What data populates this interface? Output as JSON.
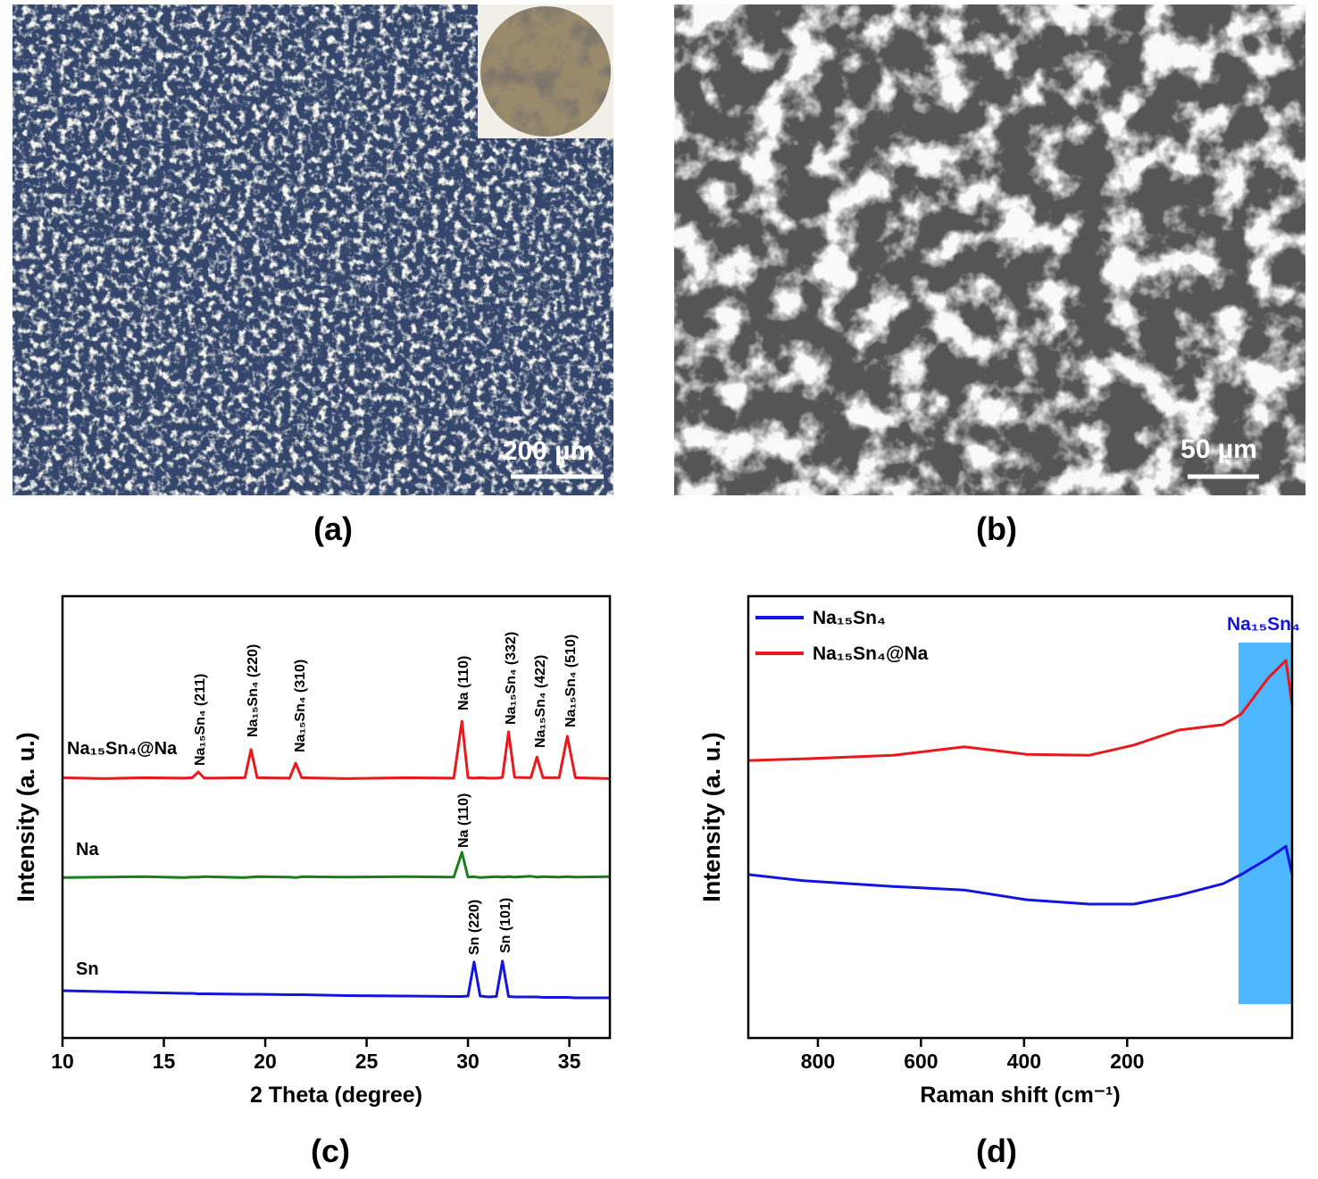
{
  "figure": {
    "panels": [
      {
        "label": "(a)",
        "scale_bar": "200 µm"
      },
      {
        "label": "(b)",
        "scale_bar": "50 µm"
      },
      {
        "label": "(c)"
      },
      {
        "label": "(d)"
      }
    ]
  },
  "chart_data": [
    {
      "type": "line",
      "x_label": "2 Theta (degree)",
      "y_label": "Intensity (a. u.)",
      "xlim": [
        10,
        37
      ],
      "xticks": [
        10,
        15,
        20,
        25,
        30,
        35
      ],
      "ylim": [
        0,
        100
      ],
      "legend": "inline",
      "x": [
        10,
        12,
        14,
        16,
        16.4,
        16.7,
        17,
        19,
        19.3,
        19.6,
        21.2,
        21.5,
        21.8,
        24,
        27,
        29.3,
        29.7,
        30.0,
        30.3,
        30.6,
        31,
        31.4,
        31.7,
        32.0,
        32.3,
        33.1,
        33.4,
        33.7,
        34.5,
        34.9,
        35.3,
        37
      ],
      "series": [
        {
          "name": "Na₁₅Sn₄@Na",
          "color": "#e8191c",
          "values": [
            58.9,
            58.7,
            58.9,
            58.8,
            58.9,
            60.2,
            58.8,
            58.9,
            65.3,
            58.9,
            58.8,
            62.2,
            58.9,
            58.7,
            58.9,
            58.8,
            71.7,
            58.9,
            58.8,
            58.9,
            58.8,
            58.8,
            59.0,
            69.3,
            59.0,
            58.9,
            63.6,
            58.9,
            58.9,
            68.3,
            58.9,
            58.7
          ]
        },
        {
          "name": "Na",
          "color": "#1a7f1a",
          "values": [
            36.3,
            36.4,
            36.5,
            36.3,
            36.4,
            36.4,
            36.5,
            36.3,
            36.4,
            36.5,
            36.4,
            36.3,
            36.5,
            36.4,
            36.5,
            36.4,
            42.0,
            36.4,
            36.5,
            36.3,
            36.4,
            36.5,
            36.4,
            36.5,
            36.4,
            36.6,
            36.4,
            36.5,
            36.4,
            36.5,
            36.4,
            36.5
          ]
        },
        {
          "name": "Sn",
          "color": "#1414e0",
          "values": [
            10.7,
            10.5,
            10.3,
            10.1,
            10.1,
            10.0,
            10.0,
            9.9,
            9.9,
            9.9,
            9.8,
            9.8,
            9.8,
            9.6,
            9.5,
            9.4,
            9.4,
            9.5,
            17.2,
            9.5,
            9.3,
            9.4,
            17.4,
            9.4,
            9.3,
            9.3,
            9.3,
            9.2,
            9.2,
            9.2,
            9.1,
            9.1
          ]
        }
      ],
      "annotations": [
        "Na₁₅Sn₄ (211)",
        "Na₁₅Sn₄ (220)",
        "Na₁₅Sn₄ (310)",
        "Na (110)",
        "Na₁₅Sn₄ (332)",
        "Na₁₅Sn₄ (422)",
        "Na₁₅Sn₄ (510)",
        "Na (110)",
        "Sn (220)",
        "Sn (101)"
      ]
    },
    {
      "type": "line",
      "x_label": "Raman shift (cm⁻¹)",
      "y_label": "Intensity (a. u.)",
      "xlim": [
        935,
        -120
      ],
      "xticks": [
        800,
        600,
        400,
        200
      ],
      "ylim": [
        0,
        100
      ],
      "legend": "upper left",
      "x": [
        935,
        828,
        654,
        516,
        395,
        273,
        187,
        100,
        14,
        -21,
        -73,
        -108,
        -120
      ],
      "series": [
        {
          "name": "Na₁₅Sn₄",
          "color": "#1414e0",
          "values": [
            37.0,
            35.6,
            34.3,
            33.5,
            31.3,
            30.3,
            30.3,
            32.3,
            34.9,
            37.0,
            40.6,
            43.4,
            37.0
          ]
        },
        {
          "name": "Na₁₅Sn₄@Na",
          "color": "#e8191c",
          "values": [
            62.8,
            63.2,
            64.0,
            65.9,
            64.2,
            64.0,
            66.3,
            69.7,
            70.9,
            73.3,
            81.4,
            85.5,
            75.4
          ]
        }
      ],
      "band": {
        "label": "Na₁₅Sn₄",
        "xrange": [
          -16,
          -120
        ],
        "color": "#4db8ff"
      }
    }
  ]
}
